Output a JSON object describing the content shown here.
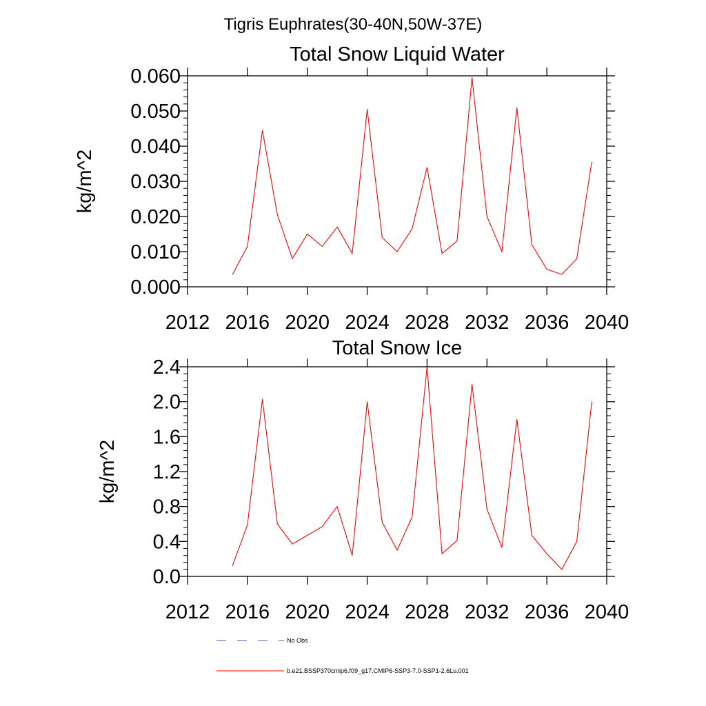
{
  "figure": {
    "title": "Tigris Euphrates(30-40N,50W-37E)"
  },
  "colors": {
    "series_line": "#ff0000",
    "no_obs_line": "#5050a0",
    "axis": "#000000"
  },
  "legend": {
    "placement": "bottom",
    "items": [
      {
        "label": "No Obs",
        "style": "dashed",
        "color": "#5050a0"
      },
      {
        "label": "b.e21.BSSP370cmip6.f09_g17.CMIP6-SSP3-7.0-SSP1-2.6Lu.001",
        "style": "solid",
        "color": "#ff0000"
      }
    ]
  },
  "chart_data": [
    {
      "type": "line",
      "title": "Total Snow Liquid Water",
      "xlabel": "",
      "ylabel": "kg/m^2",
      "xlim": [
        2012,
        2040
      ],
      "ylim": [
        0,
        0.06
      ],
      "grid": false,
      "xticks": [
        2012,
        2016,
        2020,
        2024,
        2028,
        2032,
        2036,
        2040
      ],
      "xtick_labels": [
        "2012",
        "2016",
        "2020",
        "2024",
        "2028",
        "2032",
        "2036",
        "2040"
      ],
      "yticks": [
        0,
        0.01,
        0.02,
        0.03,
        0.04,
        0.05,
        0.06
      ],
      "ytick_labels": [
        "0.000",
        "0.010",
        "0.020",
        "0.030",
        "0.040",
        "0.050",
        "0.060"
      ],
      "series": [
        {
          "name": "b.e21.BSSP370cmip6.f09_g17.CMIP6-SSP3-7.0-SSP1-2.6Lu.001",
          "x": [
            2015,
            2016,
            2017,
            2018,
            2019,
            2020,
            2021,
            2022,
            2023,
            2024,
            2025,
            2026,
            2027,
            2028,
            2029,
            2030,
            2031,
            2032,
            2033,
            2034,
            2035,
            2036,
            2037,
            2038,
            2039
          ],
          "y": [
            0.0035,
            0.0115,
            0.0445,
            0.0205,
            0.008,
            0.015,
            0.0115,
            0.017,
            0.0095,
            0.0505,
            0.014,
            0.01,
            0.0165,
            0.034,
            0.0095,
            0.013,
            0.0595,
            0.02,
            0.01,
            0.051,
            0.012,
            0.005,
            0.0035,
            0.008,
            0.0355
          ]
        }
      ]
    },
    {
      "type": "line",
      "title": "Total Snow Ice",
      "xlabel": "",
      "ylabel": "kg/m^2",
      "xlim": [
        2012,
        2040
      ],
      "ylim": [
        0,
        2.4
      ],
      "grid": false,
      "xticks": [
        2012,
        2016,
        2020,
        2024,
        2028,
        2032,
        2036,
        2040
      ],
      "xtick_labels": [
        "2012",
        "2016",
        "2020",
        "2024",
        "2028",
        "2032",
        "2036",
        "2040"
      ],
      "yticks": [
        0,
        0.4,
        0.8,
        1.2,
        1.6,
        2.0,
        2.4
      ],
      "ytick_labels": [
        "0.0",
        "0.4",
        "0.8",
        "1.2",
        "1.6",
        "2.0",
        "2.4"
      ],
      "series": [
        {
          "name": "b.e21.BSSP370cmip6.f09_g17.CMIP6-SSP3-7.0-SSP1-2.6Lu.001",
          "x": [
            2015,
            2016,
            2017,
            2018,
            2019,
            2020,
            2021,
            2022,
            2023,
            2024,
            2025,
            2026,
            2027,
            2028,
            2029,
            2030,
            2031,
            2032,
            2033,
            2034,
            2035,
            2036,
            2037,
            2038,
            2039
          ],
          "y": [
            0.12,
            0.59,
            2.03,
            0.6,
            0.37,
            0.47,
            0.57,
            0.8,
            0.24,
            2.0,
            0.62,
            0.3,
            0.68,
            2.4,
            0.26,
            0.41,
            2.2,
            0.77,
            0.33,
            1.8,
            0.47,
            0.26,
            0.08,
            0.4,
            2.0
          ]
        }
      ]
    }
  ]
}
